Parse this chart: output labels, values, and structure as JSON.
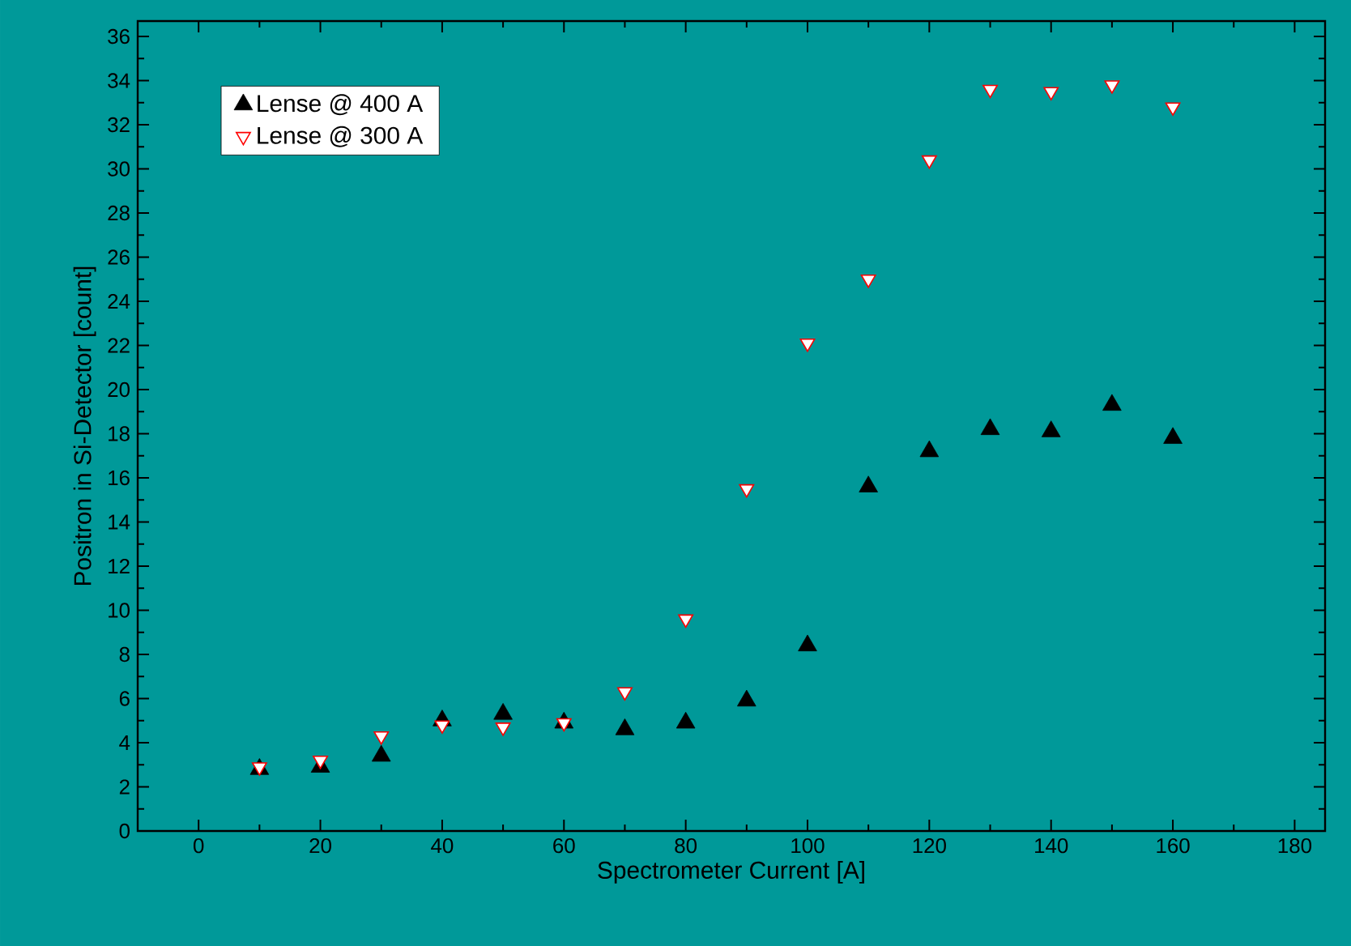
{
  "chart_data": {
    "type": "scatter",
    "xlabel": "Spectrometer Current  [A]",
    "ylabel": "Positron in Si-Detector [count]",
    "x": [
      10,
      20,
      30,
      40,
      50,
      60,
      70,
      80,
      90,
      100,
      110,
      120,
      130,
      140,
      150,
      160
    ],
    "series": [
      {
        "name": "Lense @ 400 A",
        "color": "#000000",
        "marker": "triangle",
        "values": [
          2.8,
          2.9,
          3.4,
          5.0,
          5.3,
          4.9,
          4.6,
          4.9,
          5.9,
          8.4,
          15.6,
          17.2,
          18.2,
          18.1,
          19.3,
          17.8
        ]
      },
      {
        "name": "Lense @ 300 A",
        "color": "#ff0000",
        "marker": "triangle_down",
        "values": [
          2.9,
          3.2,
          4.3,
          4.8,
          4.7,
          4.9,
          6.3,
          9.6,
          15.5,
          22.1,
          25.0,
          30.4,
          33.6,
          33.5,
          33.8,
          32.8
        ]
      }
    ],
    "xlim": [
      -10,
      185
    ],
    "ylim": [
      0,
      36.7
    ],
    "xticks": [
      0,
      20,
      40,
      60,
      80,
      100,
      120,
      140,
      160,
      180
    ],
    "yticks": [
      0,
      2,
      4,
      6,
      8,
      10,
      12,
      14,
      16,
      18,
      20,
      22,
      24,
      26,
      28,
      30,
      32,
      34,
      36
    ],
    "grid": false,
    "legend": "top left"
  }
}
